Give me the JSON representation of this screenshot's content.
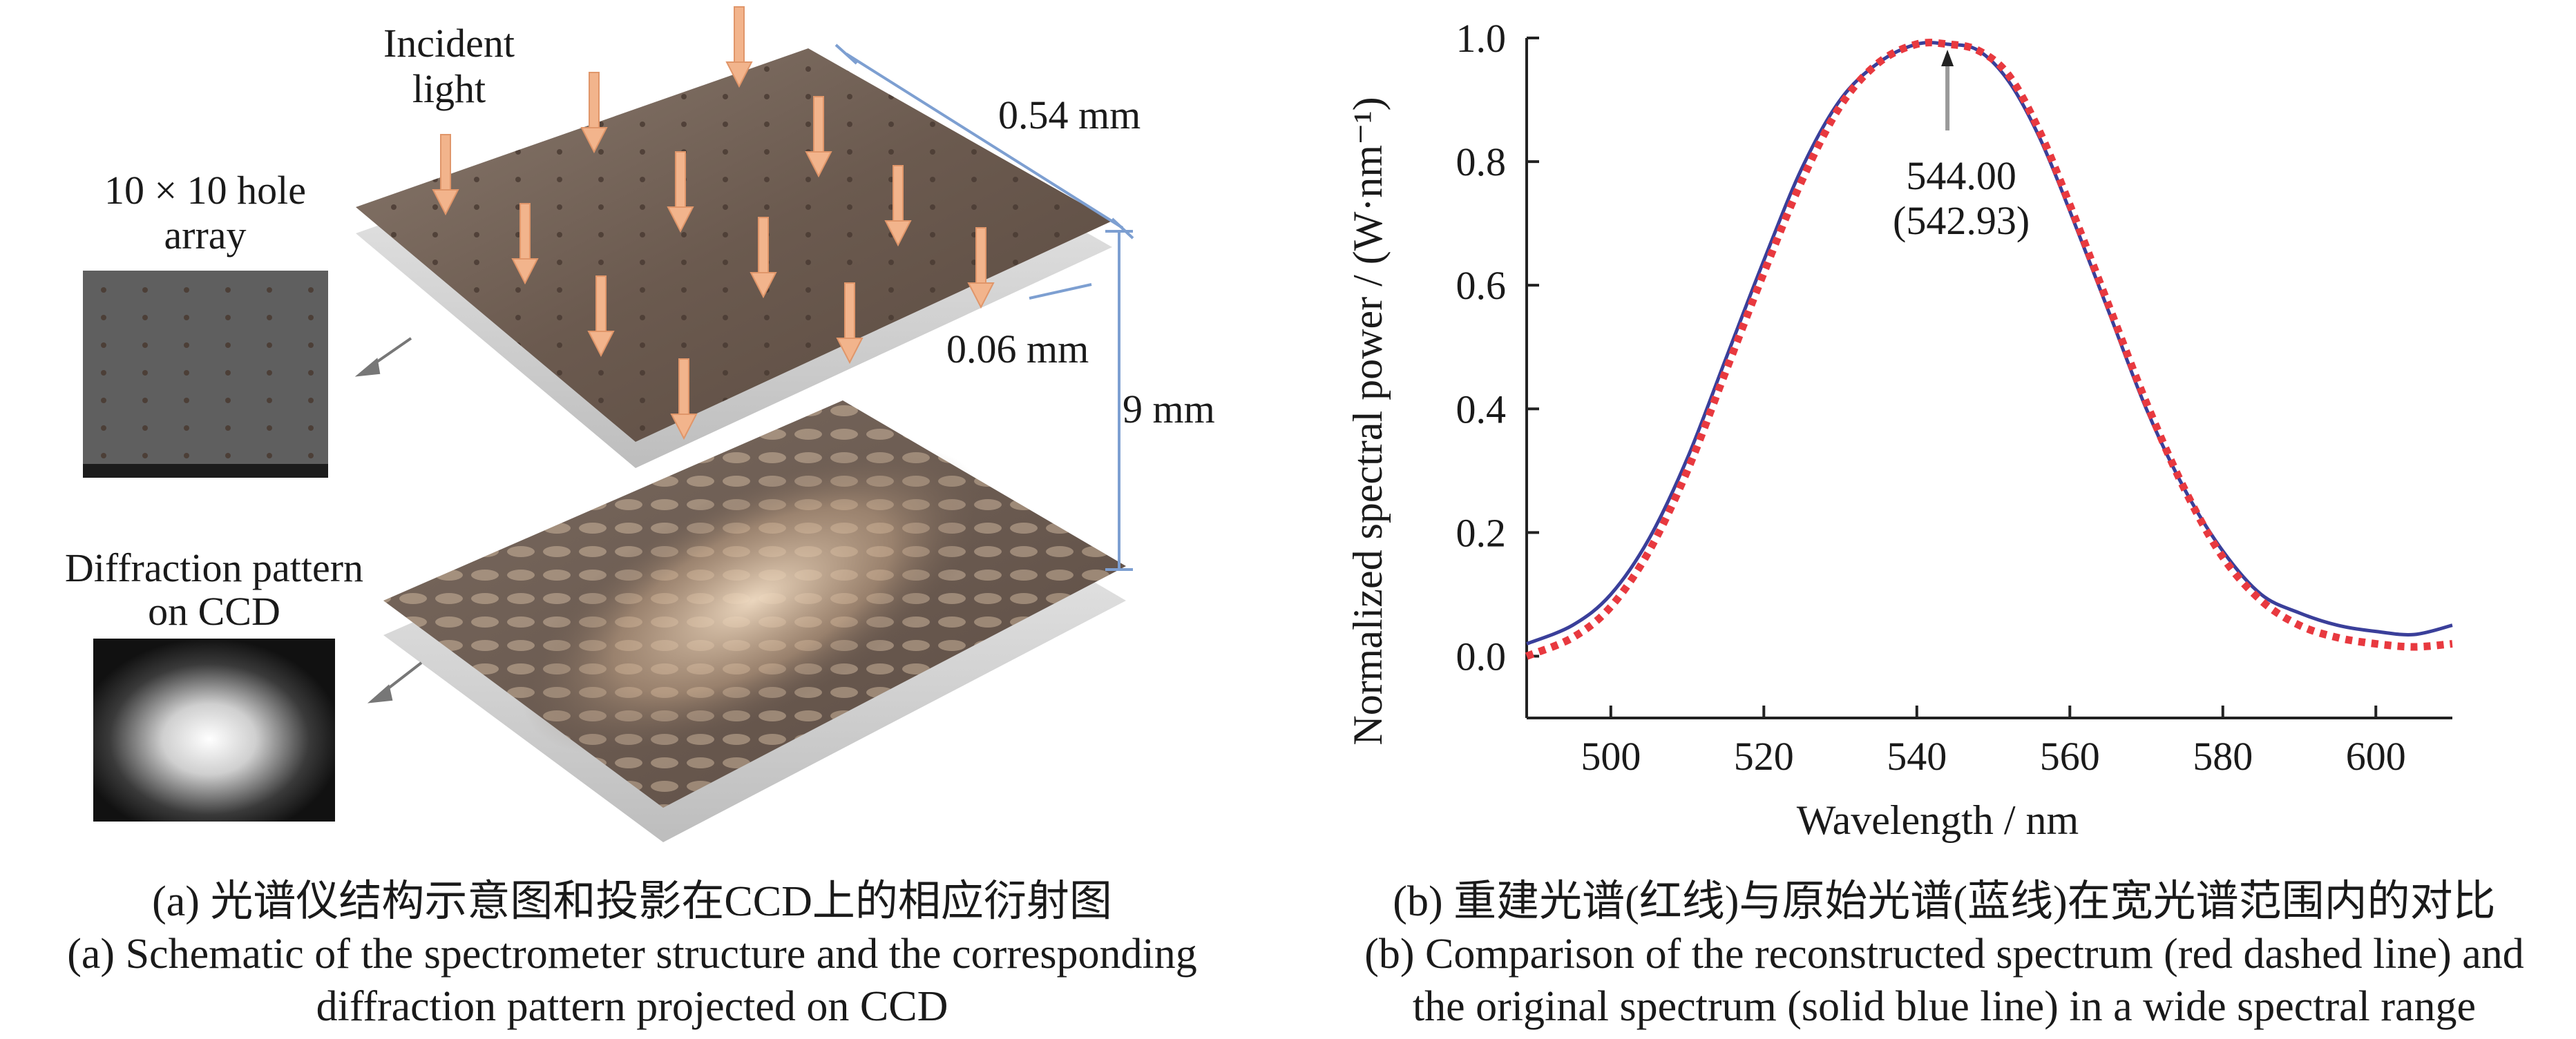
{
  "colors": {
    "plate": "#6b5a4f",
    "arrow": "#f2b48c",
    "measure": "#7d9fd1",
    "recon": "#e8393f",
    "orig": "#3a3f9a"
  },
  "left_figure": {
    "incident_label_1": "Incident",
    "incident_label_2": "light",
    "hole_label_1": "10 × 10 hole",
    "hole_label_2": "array",
    "diffraction_label_1": "Diffraction pattern",
    "diffraction_label_2": "on CCD",
    "dim_width": "0.54 mm",
    "dim_hole": "0.06 mm",
    "dim_gap": "9 mm"
  },
  "chart_data": {
    "type": "line",
    "xlabel": "Wavelength / nm",
    "ylabel": "Normalized spectral power / (W·nm⁻¹)",
    "xlim": [
      489,
      610
    ],
    "ylim": [
      -0.1,
      1.0
    ],
    "x_ticks": [
      500,
      520,
      540,
      560,
      580,
      600
    ],
    "y_ticks": [
      0.0,
      0.2,
      0.4,
      0.6,
      0.8,
      1.0
    ],
    "y_tick_labels": [
      "0.0",
      "0.2",
      "0.4",
      "0.6",
      "0.8",
      "1.0"
    ],
    "annotation": {
      "line1": "544.00",
      "line2": "(542.93)",
      "x": 544.0,
      "y": 0.99
    },
    "series": [
      {
        "name": "original",
        "style": "solid",
        "color": "#3a3f9a",
        "x": [
          489,
          495,
          500,
          505,
          510,
          515,
          520,
          525,
          530,
          535,
          540,
          544,
          548,
          552,
          556,
          560,
          565,
          570,
          575,
          580,
          585,
          590,
          595,
          600,
          605,
          610
        ],
        "y": [
          0.02,
          0.05,
          0.1,
          0.19,
          0.32,
          0.48,
          0.64,
          0.79,
          0.9,
          0.96,
          0.99,
          0.99,
          0.98,
          0.93,
          0.84,
          0.72,
          0.56,
          0.4,
          0.27,
          0.17,
          0.1,
          0.07,
          0.05,
          0.04,
          0.035,
          0.05
        ]
      },
      {
        "name": "reconstructed",
        "style": "dashed",
        "color": "#e8393f",
        "x": [
          489,
          495,
          500,
          505,
          510,
          515,
          520,
          525,
          530,
          535,
          540,
          544,
          548,
          552,
          556,
          560,
          565,
          570,
          575,
          580,
          585,
          590,
          595,
          600,
          605,
          610
        ],
        "y": [
          0.0,
          0.03,
          0.08,
          0.17,
          0.3,
          0.46,
          0.62,
          0.77,
          0.89,
          0.96,
          0.99,
          0.99,
          0.98,
          0.94,
          0.85,
          0.73,
          0.57,
          0.41,
          0.27,
          0.16,
          0.09,
          0.05,
          0.03,
          0.02,
          0.015,
          0.02
        ]
      }
    ]
  },
  "captions": {
    "a_cn": "(a) 光谱仪结构示意图和投影在CCD上的相应衍射图",
    "a_en_1": "(a) Schematic of the spectrometer structure and the corresponding",
    "a_en_2": "diffraction pattern projected on CCD",
    "b_cn": "(b) 重建光谱(红线)与原始光谱(蓝线)在宽光谱范围内的对比",
    "b_en_1": "(b) Comparison of the reconstructed spectrum (red dashed line) and",
    "b_en_2": "the original spectrum (solid blue line) in a wide spectral range"
  }
}
